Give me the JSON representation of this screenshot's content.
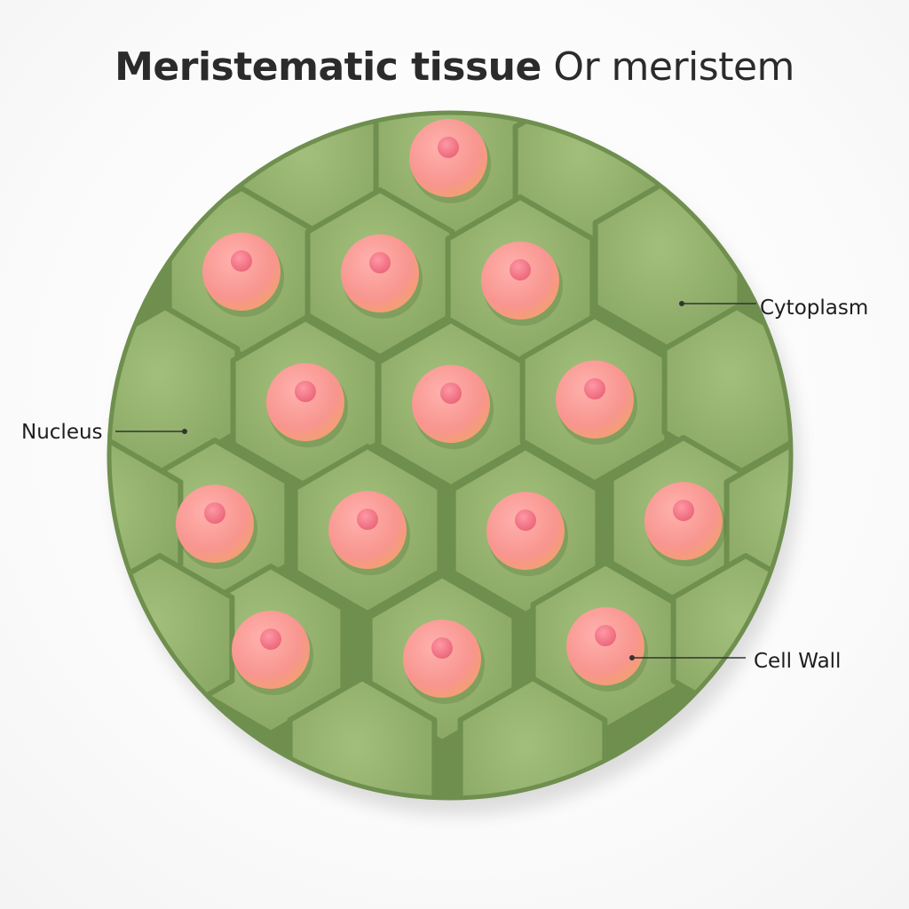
{
  "title": {
    "bold": "Meristematic tissue",
    "regular": "Or meristem"
  },
  "labels": {
    "cytoplasm": "Cytoplasm",
    "nucleus": "Nucleus",
    "cell_wall": "Cell Wall"
  },
  "colors": {
    "cell_fill": "#93b06c",
    "cell_wall": "#6f8f4e",
    "nucleus_fill": "#f4938f",
    "nucleolus_fill": "#ee6f7e",
    "leader_line": "#333333"
  }
}
